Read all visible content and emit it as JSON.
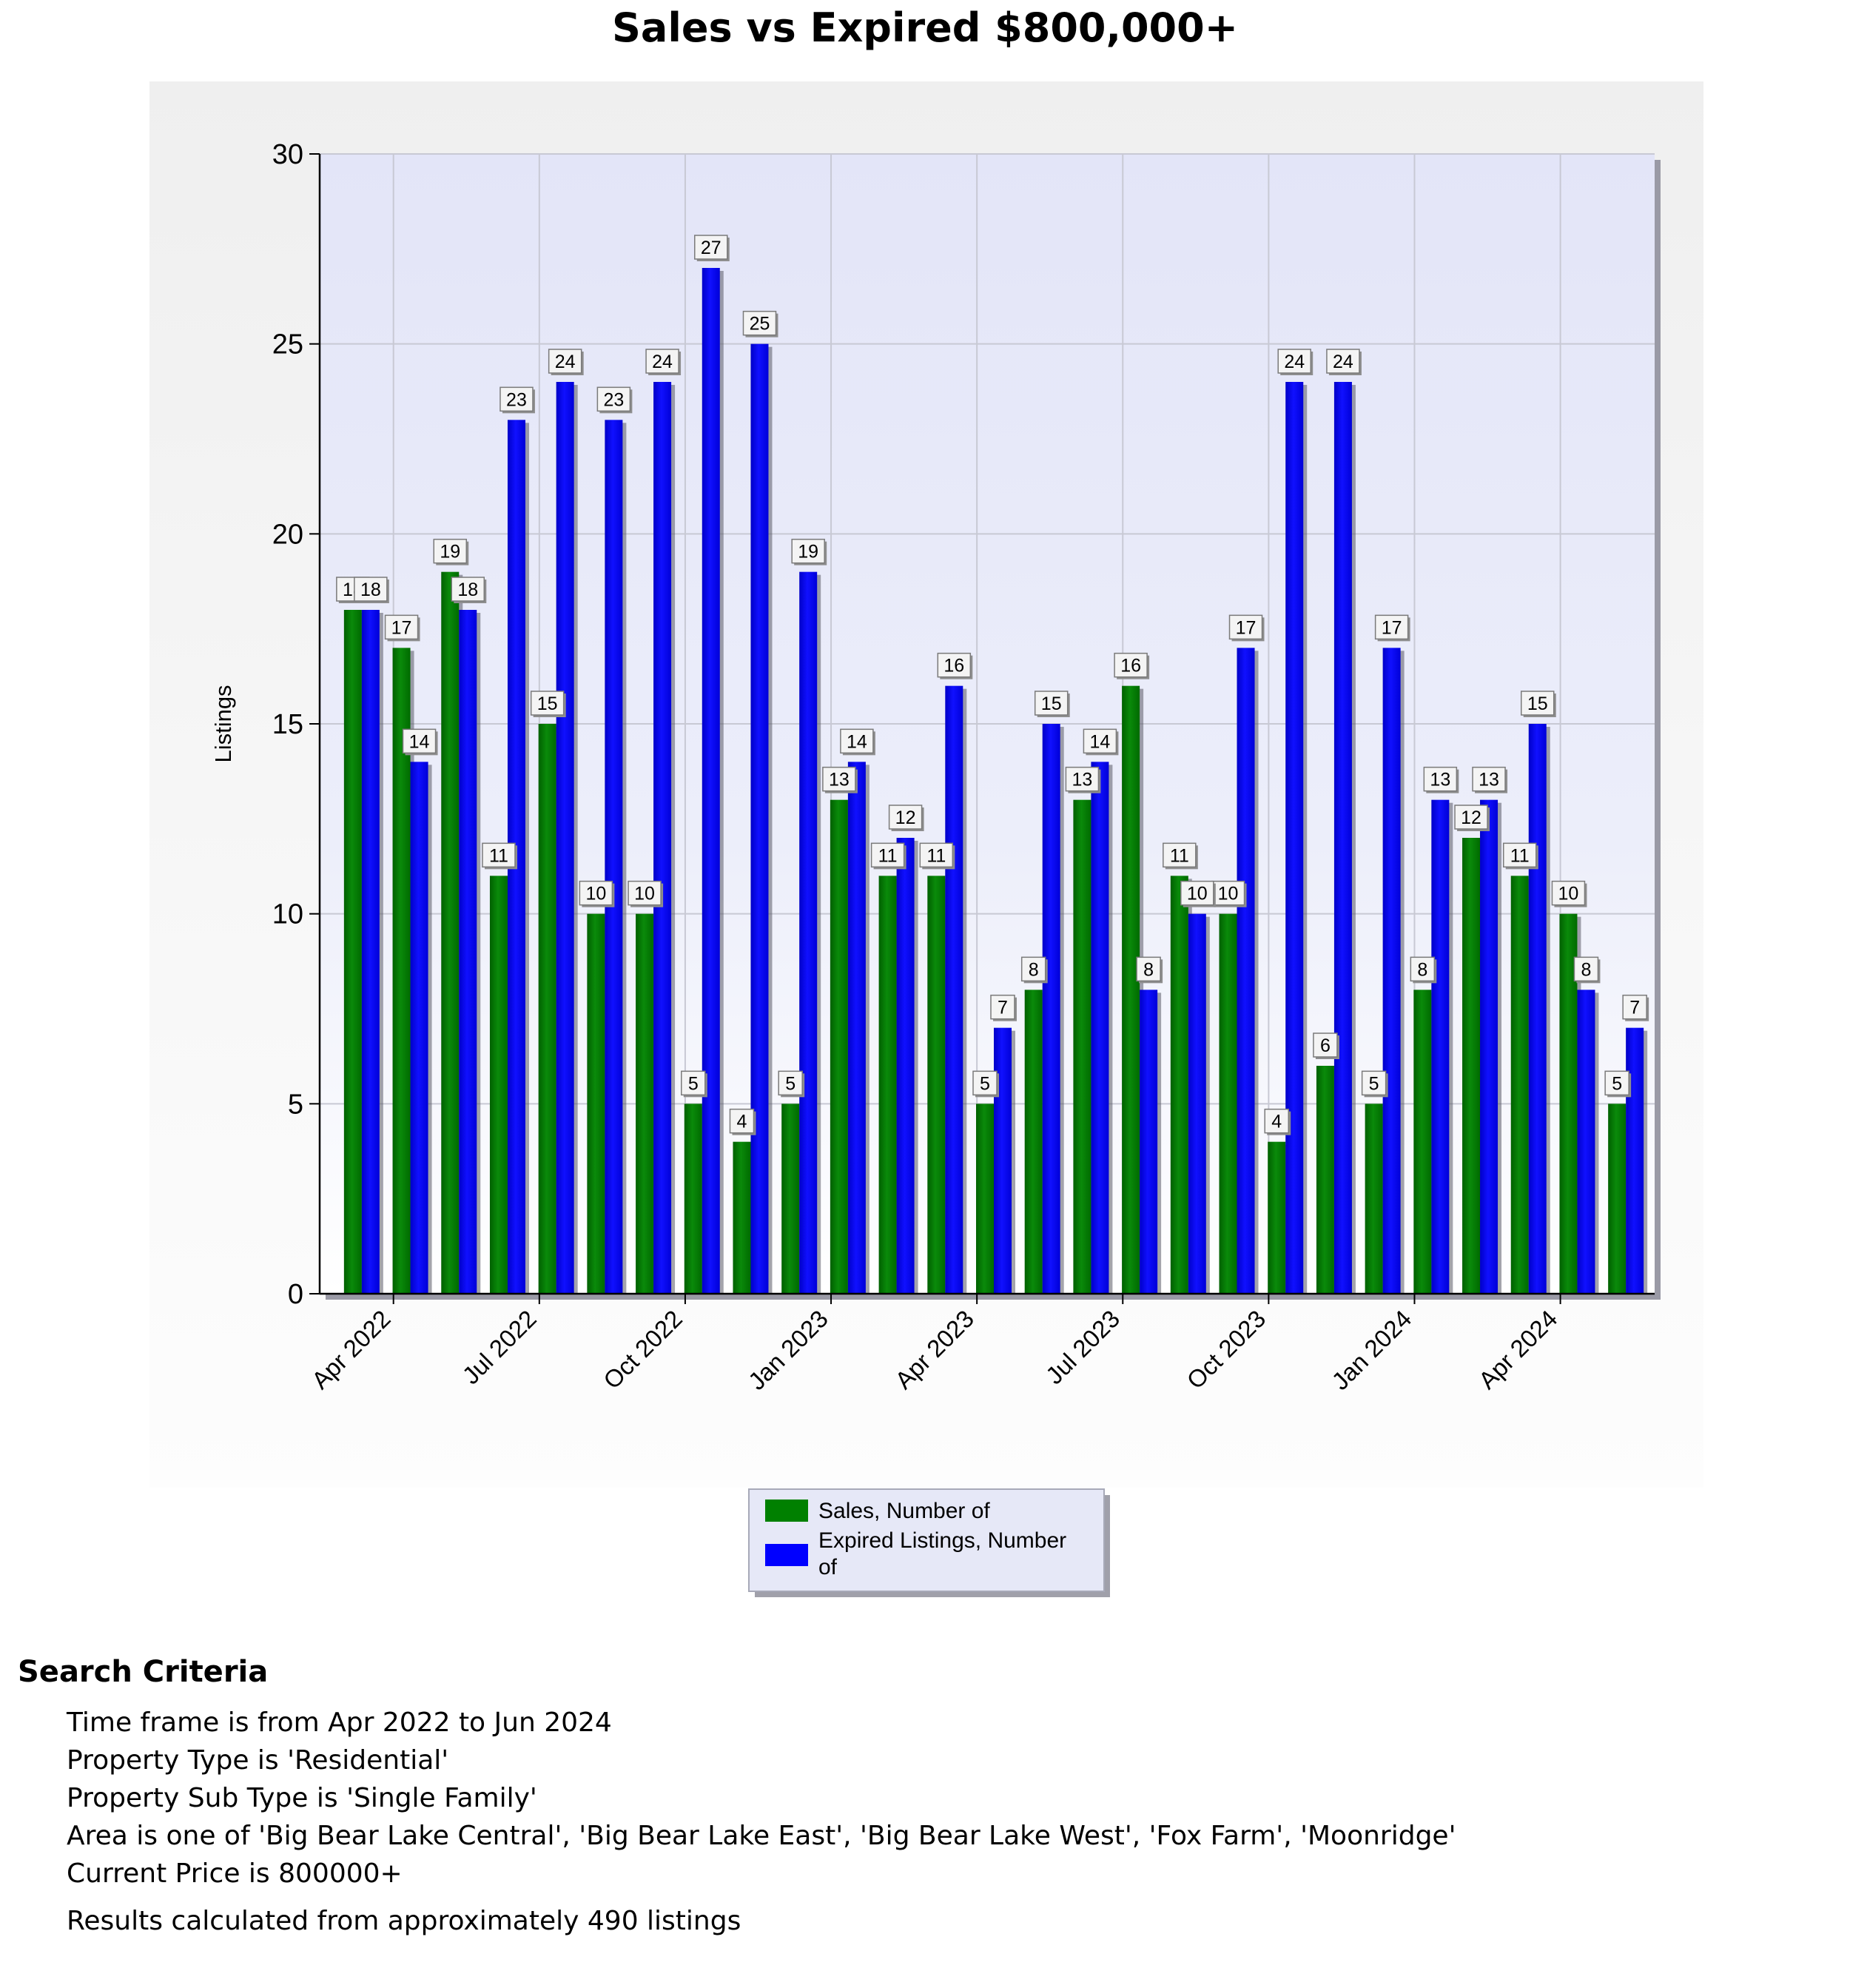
{
  "chart_data": {
    "type": "bar",
    "title": "Sales vs Expired $800,000+",
    "ylabel": "Listings",
    "xlabel": "",
    "ylim": [
      0,
      30
    ],
    "yticks": [
      0,
      5,
      10,
      15,
      20,
      25,
      30
    ],
    "grid": true,
    "legend_position": "bottom-center",
    "categories": [
      "Apr 2022",
      "May 2022",
      "Jun 2022",
      "Jul 2022",
      "Aug 2022",
      "Sep 2022",
      "Oct 2022",
      "Nov 2022",
      "Dec 2022",
      "Jan 2023",
      "Feb 2023",
      "Mar 2023",
      "Apr 2023",
      "May 2023",
      "Jun 2023",
      "Jul 2023",
      "Aug 2023",
      "Sep 2023",
      "Oct 2023",
      "Nov 2023",
      "Dec 2023",
      "Jan 2024",
      "Feb 2024",
      "Mar 2024",
      "Apr 2024",
      "May 2024",
      "Jun 2024"
    ],
    "tick_labels": [
      "Apr 2022",
      "",
      "",
      "Jul 2022",
      "",
      "",
      "Oct 2022",
      "",
      "",
      "Jan 2023",
      "",
      "",
      "Apr 2023",
      "",
      "",
      "Jul 2023",
      "",
      "",
      "Oct 2023",
      "",
      "",
      "Jan 2024",
      "",
      "",
      "Apr 2024",
      "",
      ""
    ],
    "series": [
      {
        "name": "Sales, Number of",
        "color": "#008000",
        "values": [
          18,
          17,
          19,
          11,
          15,
          10,
          10,
          5,
          4,
          5,
          13,
          11,
          11,
          5,
          8,
          13,
          16,
          11,
          10,
          4,
          6,
          5,
          8,
          12,
          11,
          10,
          5
        ]
      },
      {
        "name": "Expired Listings, Number of",
        "color": "#0000ff",
        "values": [
          18,
          14,
          18,
          23,
          24,
          23,
          24,
          27,
          25,
          19,
          14,
          12,
          16,
          7,
          15,
          14,
          8,
          10,
          17,
          24,
          24,
          17,
          13,
          13,
          15,
          8,
          7
        ]
      }
    ]
  },
  "criteria": {
    "heading": "Search Criteria",
    "lines": [
      "Time frame is from Apr 2022 to Jun 2024",
      "Property Type is 'Residential'",
      "Property Sub Type is 'Single Family'",
      "Area is one of 'Big Bear Lake Central', 'Big Bear Lake East', 'Big Bear Lake West', 'Fox Farm', 'Moonridge'",
      "Current Price is 800000+"
    ],
    "results_note": "Results calculated from approximately 490 listings"
  }
}
